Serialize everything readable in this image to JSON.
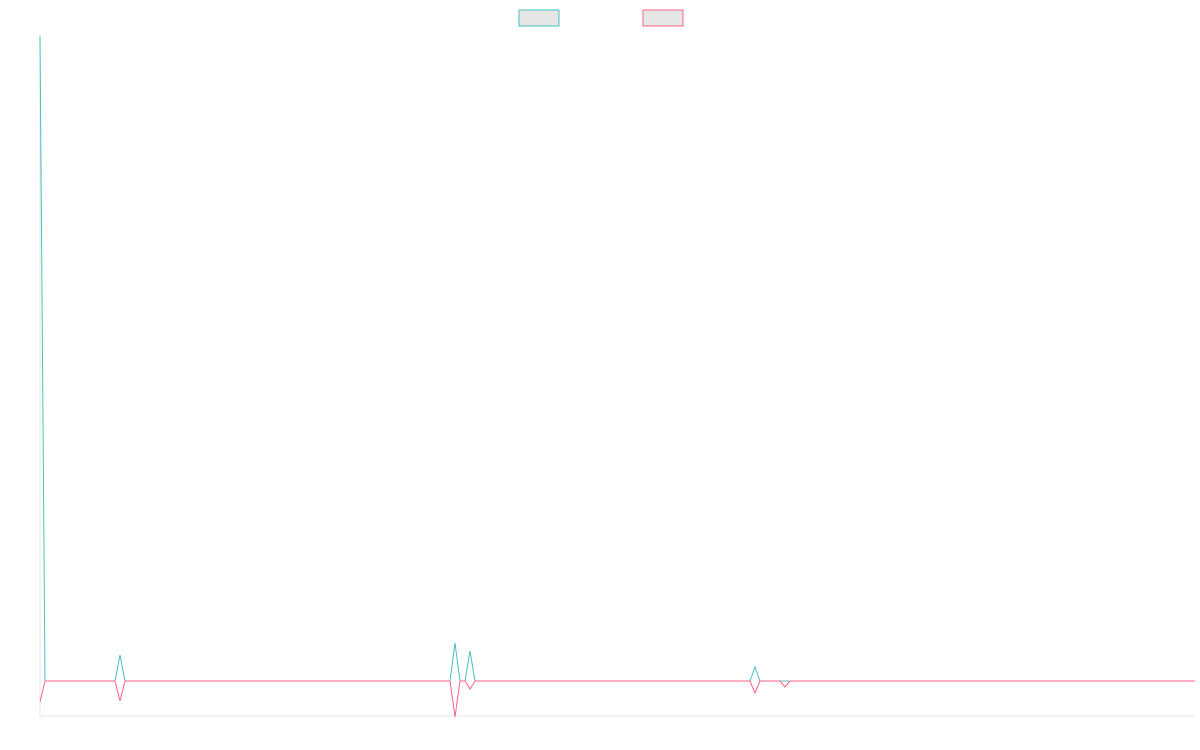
{
  "chart_data": {
    "type": "line",
    "x": [
      0,
      1,
      15,
      16,
      17,
      82,
      83,
      84,
      85,
      86,
      87,
      142,
      143,
      144,
      148,
      149,
      150,
      231
    ],
    "xlim": [
      0,
      231
    ],
    "ylim": [
      -35,
      646
    ],
    "series": [
      {
        "color": "#4bc0c0",
        "values": [
          645,
          0,
          0,
          26,
          0,
          0,
          38,
          0,
          0,
          30,
          0,
          0,
          14,
          0,
          0,
          0,
          0,
          0
        ]
      },
      {
        "color": "#ff6384",
        "values": [
          -21,
          0,
          0,
          -20,
          0,
          0,
          -36,
          0,
          0,
          -8,
          0,
          0,
          -12,
          0,
          0,
          -6,
          0,
          0
        ]
      }
    ],
    "legend": "top",
    "grid": false
  }
}
